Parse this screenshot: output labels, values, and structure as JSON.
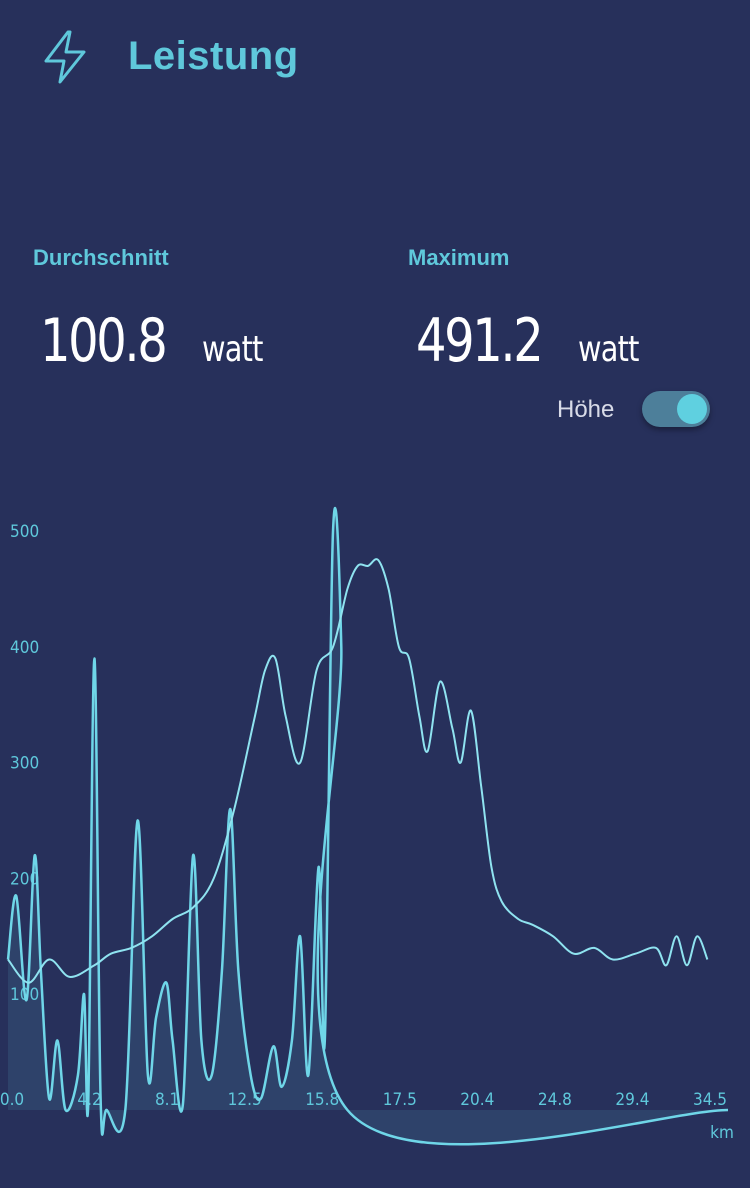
{
  "header": {
    "title": "Leistung",
    "icon": "bolt-icon"
  },
  "stats": {
    "average": {
      "label": "Durchschnitt",
      "value": "100.8",
      "unit": "watt"
    },
    "maximum": {
      "label": "Maximum",
      "value": "491.2",
      "unit": "watt"
    }
  },
  "elevation_toggle": {
    "label": "Höhe",
    "on": true
  },
  "colors": {
    "background": "#27305b",
    "accent": "#5fc8db",
    "text": "#ffffff"
  },
  "chart_data": {
    "type": "line",
    "x_unit": "km",
    "y_ticks": [
      "500",
      "400",
      "300",
      "200",
      "100"
    ],
    "x_ticks": [
      "0.0",
      "4.2",
      "8.1",
      "12.5",
      "15.8",
      "17.5",
      "20.4",
      "24.8",
      "29.4",
      "34.5"
    ],
    "ylim": [
      0,
      520
    ],
    "series": [
      {
        "values_km_power": [
          [
            0.0,
            130
          ],
          [
            0.4,
            185
          ],
          [
            0.9,
            95
          ],
          [
            1.3,
            220
          ],
          [
            1.6,
            120
          ],
          [
            2.0,
            10
          ],
          [
            2.4,
            60
          ],
          [
            2.8,
            0
          ],
          [
            3.4,
            30
          ],
          [
            3.7,
            100
          ],
          [
            3.9,
            5
          ],
          [
            4.2,
            390
          ],
          [
            4.5,
            10
          ],
          [
            4.8,
            0
          ],
          [
            5.7,
            0
          ],
          [
            6.3,
            250
          ],
          [
            6.8,
            30
          ],
          [
            7.2,
            80
          ],
          [
            7.7,
            110
          ],
          [
            8.0,
            60
          ],
          [
            8.5,
            5
          ],
          [
            9.0,
            220
          ],
          [
            9.4,
            60
          ],
          [
            9.9,
            30
          ],
          [
            10.4,
            120
          ],
          [
            10.8,
            260
          ],
          [
            11.2,
            120
          ],
          [
            11.8,
            30
          ],
          [
            12.3,
            10
          ],
          [
            12.9,
            55
          ],
          [
            13.3,
            20
          ],
          [
            13.8,
            60
          ],
          [
            14.2,
            150
          ],
          [
            14.6,
            30
          ],
          [
            15.1,
            210
          ],
          [
            15.4,
            60
          ],
          [
            15.8,
            500
          ],
          [
            16.2,
            400
          ],
          [
            16.5,
            0
          ],
          [
            35.0,
            0
          ]
        ]
      },
      {
        "values_km_elevation": [
          [
            0.0,
            130
          ],
          [
            1.0,
            110
          ],
          [
            2.0,
            130
          ],
          [
            3.0,
            115
          ],
          [
            4.2,
            125
          ],
          [
            5.0,
            135
          ],
          [
            6.0,
            140
          ],
          [
            7.0,
            150
          ],
          [
            8.0,
            165
          ],
          [
            9.0,
            175
          ],
          [
            10.0,
            200
          ],
          [
            11.0,
            260
          ],
          [
            12.0,
            340
          ],
          [
            12.5,
            380
          ],
          [
            13.0,
            390
          ],
          [
            13.5,
            340
          ],
          [
            14.2,
            300
          ],
          [
            15.0,
            380
          ],
          [
            15.8,
            400
          ],
          [
            16.5,
            450
          ],
          [
            17.0,
            470
          ],
          [
            17.5,
            470
          ],
          [
            18.0,
            475
          ],
          [
            18.5,
            450
          ],
          [
            19.0,
            400
          ],
          [
            19.5,
            390
          ],
          [
            20.0,
            340
          ],
          [
            20.4,
            310
          ],
          [
            21.0,
            370
          ],
          [
            21.6,
            330
          ],
          [
            22.0,
            300
          ],
          [
            22.5,
            345
          ],
          [
            23.0,
            280
          ],
          [
            23.5,
            210
          ],
          [
            24.0,
            180
          ],
          [
            24.8,
            165
          ],
          [
            25.5,
            160
          ],
          [
            26.5,
            150
          ],
          [
            27.5,
            135
          ],
          [
            28.5,
            140
          ],
          [
            29.4,
            130
          ],
          [
            30.5,
            135
          ],
          [
            31.5,
            140
          ],
          [
            32.0,
            125
          ],
          [
            32.5,
            150
          ],
          [
            33.0,
            125
          ],
          [
            33.5,
            150
          ],
          [
            34.0,
            130
          ]
        ]
      }
    ]
  }
}
